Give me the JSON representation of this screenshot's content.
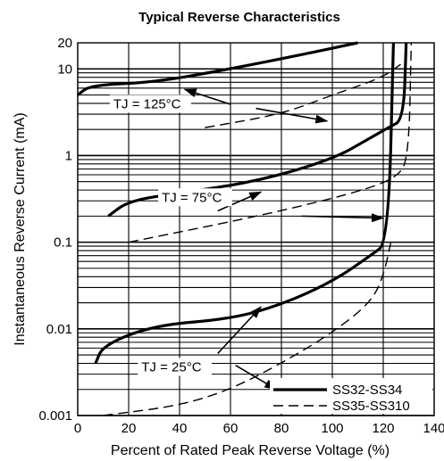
{
  "chart_data": {
    "type": "line",
    "title": "Typical Reverse Characteristics",
    "xlabel": "Percent of Rated Peak Reverse Voltage (%)",
    "ylabel": "Instantaneous  Reverse Current (mA)",
    "xlim": [
      0,
      140
    ],
    "ylim": [
      0.001,
      20
    ],
    "yscale": "log",
    "grid": true,
    "x_ticks": [
      0,
      20,
      40,
      60,
      80,
      100,
      120,
      140
    ],
    "x_tick_labels": [
      "0",
      "20",
      "40",
      "60",
      "80",
      "100",
      "120",
      "140"
    ],
    "y_ticks": [
      0.001,
      0.01,
      0.1,
      1,
      10,
      20
    ],
    "y_tick_labels": [
      "0.001",
      "0.01",
      "0.1",
      "1",
      "10",
      "20"
    ],
    "legend_position": "bottom-right",
    "legend": [
      {
        "label": "SS32-SS34",
        "style": "solid"
      },
      {
        "label": "SS35-SS310",
        "style": "dashed"
      }
    ],
    "annotations": [
      {
        "text": "TJ = 125°C",
        "x": 14,
        "y": 3.6
      },
      {
        "text": "TJ = 75°C",
        "x": 33,
        "y": 0.3
      },
      {
        "text": "TJ = 25°C",
        "x": 25,
        "y": 0.0033
      }
    ],
    "series": [
      {
        "name": "SS32-SS34",
        "group": "TJ = 125°C",
        "style": "solid",
        "points": [
          [
            0,
            5
          ],
          [
            5,
            6.5
          ],
          [
            30,
            7
          ],
          [
            60,
            10
          ],
          [
            90,
            15
          ],
          [
            110,
            20
          ]
        ]
      },
      {
        "name": "SS35-SS310",
        "group": "TJ = 125°C",
        "style": "dashed",
        "points": [
          [
            50,
            2.1
          ],
          [
            80,
            3
          ],
          [
            100,
            5
          ],
          [
            120,
            8
          ],
          [
            128,
            12
          ]
        ]
      },
      {
        "name": "SS32-SS34",
        "group": "TJ = 75°C",
        "style": "solid",
        "points": [
          [
            12,
            0.2
          ],
          [
            20,
            0.3
          ],
          [
            40,
            0.37
          ],
          [
            70,
            0.5
          ],
          [
            100,
            0.9
          ],
          [
            115,
            1.6
          ],
          [
            122,
            2.1
          ],
          [
            128,
            2.6
          ],
          [
            129,
            20
          ]
        ]
      },
      {
        "name": "SS35-SS310",
        "group": "TJ = 75°C",
        "style": "dashed",
        "points": [
          [
            20,
            0.1
          ],
          [
            50,
            0.15
          ],
          [
            80,
            0.23
          ],
          [
            110,
            0.38
          ],
          [
            125,
            0.55
          ],
          [
            130,
            0.9
          ],
          [
            131,
            20
          ]
        ]
      },
      {
        "name": "SS32-SS34",
        "group": "TJ = 25°C",
        "style": "solid",
        "points": [
          [
            7,
            0.004
          ],
          [
            10,
            0.0065
          ],
          [
            30,
            0.011
          ],
          [
            60,
            0.013
          ],
          [
            80,
            0.019
          ],
          [
            100,
            0.035
          ],
          [
            115,
            0.07
          ],
          [
            122,
            0.1
          ],
          [
            124,
            20
          ]
        ]
      },
      {
        "name": "SS35-SS310",
        "group": "TJ = 25°C",
        "style": "dashed",
        "points": [
          [
            10,
            0.001
          ],
          [
            40,
            0.0013
          ],
          [
            60,
            0.002
          ],
          [
            80,
            0.004
          ],
          [
            100,
            0.009
          ],
          [
            115,
            0.02
          ],
          [
            120,
            0.04
          ],
          [
            123,
            0.1
          ]
        ]
      }
    ]
  }
}
